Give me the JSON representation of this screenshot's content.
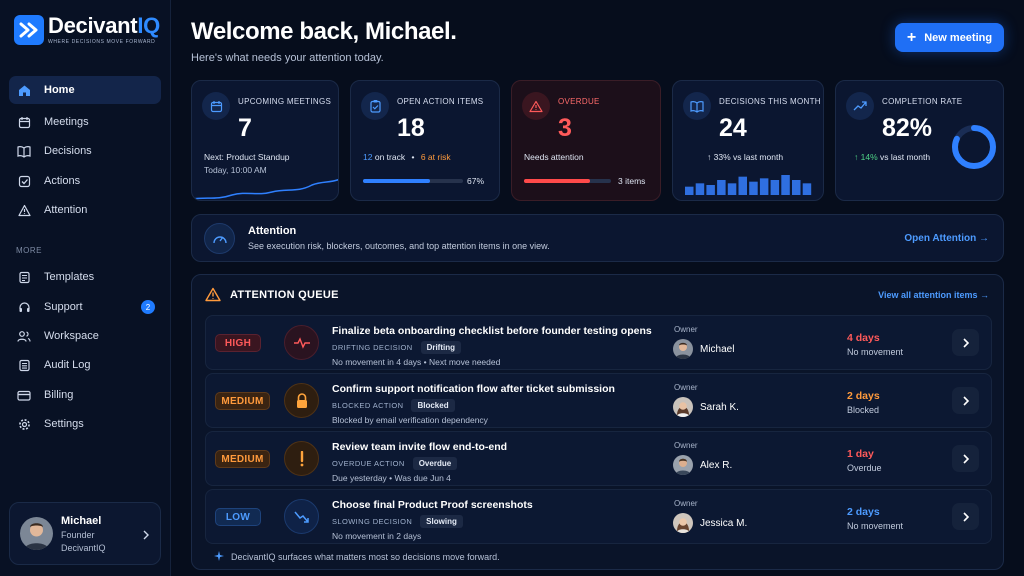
{
  "brand": {
    "name_main": "Decivant",
    "name_accent": "IQ",
    "tagline": "WHERE DECISIONS MOVE FORWARD"
  },
  "sidebar": {
    "items": [
      {
        "label": "Home",
        "icon": "home-icon",
        "active": true
      },
      {
        "label": "Meetings",
        "icon": "calendar-icon"
      },
      {
        "label": "Decisions",
        "icon": "book-icon"
      },
      {
        "label": "Actions",
        "icon": "checkbox-icon"
      },
      {
        "label": "Attention",
        "icon": "warning-icon"
      }
    ],
    "more_label": "MORE",
    "more_items": [
      {
        "label": "Templates",
        "icon": "template-icon"
      },
      {
        "label": "Support",
        "icon": "headset-icon",
        "badge": "2"
      },
      {
        "label": "Workspace",
        "icon": "users-icon"
      },
      {
        "label": "Audit Log",
        "icon": "log-icon"
      },
      {
        "label": "Billing",
        "icon": "card-icon"
      },
      {
        "label": "Settings",
        "icon": "gear-icon"
      }
    ],
    "user": {
      "name": "Michael",
      "role": "Founder",
      "org": "DecivantIQ"
    }
  },
  "header": {
    "title": "Welcome back, Michael.",
    "subtitle": "Here's what needs your attention today.",
    "new_meeting_label": "New meeting"
  },
  "cards": {
    "meetings": {
      "label": "UPCOMING MEETINGS",
      "value": "7",
      "line1": "Next: Product Standup",
      "line2": "Today, 10:00 AM"
    },
    "actions": {
      "label": "OPEN ACTION ITEMS",
      "value": "18",
      "on_track_count": "12",
      "on_track_label": "on track",
      "sep": "•",
      "at_risk": "6 at risk",
      "progress_pct": "67%",
      "progress": 0.67
    },
    "overdue": {
      "label": "OVERDUE",
      "value": "3",
      "line1": "Needs attention",
      "items": "3 items",
      "progress": 0.76
    },
    "decisions": {
      "label": "DECISIONS THIS MONTH",
      "value": "24",
      "delta": "↑ 33% vs last month",
      "bars": [
        5,
        7,
        6,
        9,
        7,
        11,
        8,
        10,
        9,
        12,
        9,
        7
      ]
    },
    "completion": {
      "label": "COMPLETION RATE",
      "value": "82%",
      "delta_arrow": "↑",
      "delta_value": "14%",
      "delta_text": "vs last month",
      "rate": 0.82
    }
  },
  "attention_banner": {
    "title": "Attention",
    "description": "See execution risk, blockers, outcomes, and top attention items in one view.",
    "link": "Open Attention →"
  },
  "queue": {
    "title": "ATTENTION QUEUE",
    "link": "View all attention items →",
    "owner_label": "Owner",
    "rows": [
      {
        "priority": "HIGH",
        "title": "Finalize beta onboarding checklist before founder testing opens",
        "tag_type": "DRIFTING DECISION",
        "tag": "Drifting",
        "sub": "No movement in 4 days  •  Next move needed",
        "owner": "Michael",
        "due": "4 days",
        "due_sub": "No movement",
        "due_color": "#ff5a5a",
        "icon": "pulse-icon"
      },
      {
        "priority": "MEDIUM",
        "title": "Confirm support notification flow after ticket submission",
        "tag_type": "BLOCKED ACTION",
        "tag": "Blocked",
        "sub": "Blocked by email verification dependency",
        "owner": "Sarah K.",
        "due": "2 days",
        "due_sub": "Blocked",
        "due_color": "#ff9a3c",
        "icon": "lock-icon"
      },
      {
        "priority": "MEDIUM",
        "title": "Review team invite flow end-to-end",
        "tag_type": "OVERDUE ACTION",
        "tag": "Overdue",
        "sub": "Due yesterday  •  Was due Jun 4",
        "owner": "Alex R.",
        "due": "1 day",
        "due_sub": "Overdue",
        "due_color": "#ff5a5a",
        "icon": "exclamation-icon"
      },
      {
        "priority": "LOW",
        "title": "Choose final Product Proof screenshots",
        "tag_type": "SLOWING DECISION",
        "tag": "Slowing",
        "sub": "No movement in 2 days",
        "owner": "Jessica M.",
        "due": "2 days",
        "due_sub": "No movement",
        "due_color": "#4d9bff",
        "icon": "trend-down-icon"
      }
    ],
    "footer": "DecivantIQ surfaces what matters most so decisions move forward."
  },
  "colors": {
    "accent": "#1f6ff5",
    "high": "#ff5a5a",
    "medium": "#ff9a3c",
    "low": "#4d9bff",
    "positive": "#4fd386"
  }
}
